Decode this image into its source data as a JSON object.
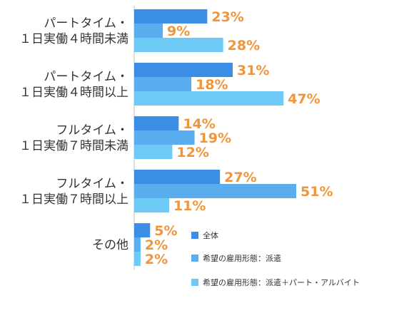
{
  "chart_data": {
    "type": "bar",
    "orientation": "horizontal",
    "categories": [
      [
        "パートタイム・",
        "１日実働４時間未満"
      ],
      [
        "パートタイム・",
        "１日実働４時間以上"
      ],
      [
        "フルタイム・",
        "１日実働７時間未満"
      ],
      [
        "フルタイム・",
        "１日実働７時間以上"
      ],
      [
        "その他"
      ]
    ],
    "series": [
      {
        "name": "全体",
        "color": "#3a8ee6",
        "values": [
          23,
          31,
          14,
          27,
          5
        ],
        "labels": [
          "23%",
          "31%",
          "14%",
          "27%",
          "5%"
        ]
      },
      {
        "name": "希望の雇用形態：派遣",
        "color": "#5aaef0",
        "values": [
          9,
          18,
          19,
          51,
          2
        ],
        "labels": [
          "9%",
          "18%",
          "19%",
          "51%",
          "2%"
        ]
      },
      {
        "name": "希望の雇用形態：派遣＋パート・アルバイト",
        "color": "#6ccaf5",
        "values": [
          28,
          47,
          12,
          11,
          2
        ],
        "labels": [
          "28%",
          "47%",
          "12%",
          "11%",
          "2%"
        ]
      }
    ],
    "xlim": [
      0,
      55
    ],
    "value_label_color": "#f0953a",
    "legend_position": "bottom-right",
    "grid": false
  }
}
